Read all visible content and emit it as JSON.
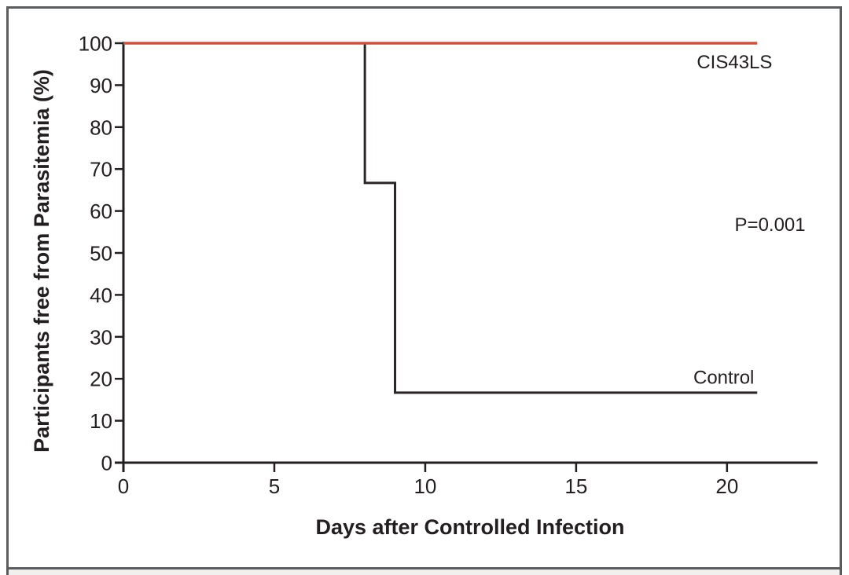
{
  "chart_data": {
    "type": "line",
    "subtype": "kaplan-meier-step",
    "title": "",
    "xlabel": "Days after Controlled Infection",
    "ylabel": "Participants free from Parasitemia (%)",
    "xlim": [
      0,
      23
    ],
    "ylim": [
      0,
      100
    ],
    "xticks": [
      0,
      5,
      10,
      15,
      20
    ],
    "yticks": [
      0,
      10,
      20,
      30,
      40,
      50,
      60,
      70,
      80,
      90,
      100
    ],
    "grid": false,
    "legend_position": "inline-labels",
    "series": [
      {
        "name": "CIS43LS",
        "color": "#c65340",
        "stroke_width": 3.5,
        "points": [
          [
            0,
            100
          ],
          [
            21,
            100
          ]
        ]
      },
      {
        "name": "Control",
        "color": "#2b2526",
        "stroke_width": 3,
        "points": [
          [
            0,
            100
          ],
          [
            8,
            100
          ],
          [
            8,
            66.7
          ],
          [
            9,
            66.7
          ],
          [
            9,
            16.7
          ],
          [
            21,
            16.7
          ]
        ]
      }
    ],
    "annotations": [
      {
        "text": "CIS43LS",
        "x": 21.5,
        "y": 94.0,
        "anchor": "end"
      },
      {
        "text": "P=0.001",
        "x": 22.6,
        "y": 55.2,
        "anchor": "end"
      },
      {
        "text": "Control",
        "x": 20.9,
        "y": 18.8,
        "anchor": "end"
      }
    ]
  },
  "colors": {
    "text": "#231f20",
    "axis": "#231f20",
    "cis43ls_line": "#c65340",
    "control_line": "#2b2526",
    "frame_border": "#5b5c5e",
    "lower_panel_bg": "#f1f0ee"
  }
}
